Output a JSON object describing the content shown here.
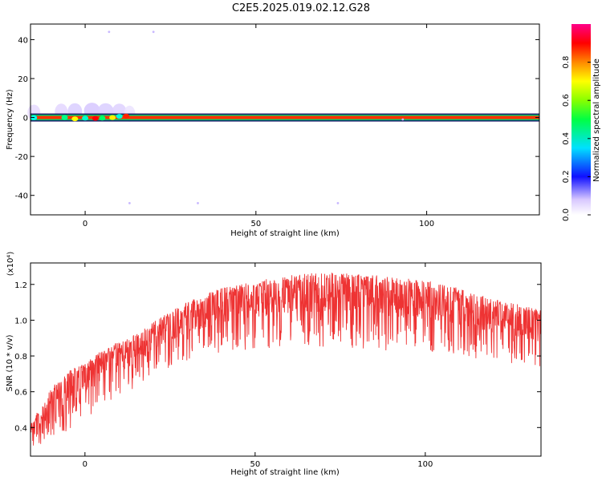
{
  "title": "C2E5.2025.019.02.12.G28",
  "chart_data": [
    {
      "type": "heatmap",
      "xlabel": "Height of straight line (km)",
      "ylabel": "Frequency (Hz)",
      "xlim": [
        -16,
        133
      ],
      "ylim": [
        -50,
        48
      ],
      "xticks": [
        0,
        50,
        100
      ],
      "yticks": [
        -40,
        -20,
        0,
        20,
        40
      ],
      "ridge_frequency": 0,
      "colorbar": {
        "label": "Normalized spectral amplitude",
        "range": [
          0,
          1
        ],
        "ticks": [
          "0.0",
          "0.2",
          "0.4",
          "0.6",
          "0.8"
        ]
      }
    },
    {
      "type": "line",
      "xlabel": "Height of straight line (km)",
      "ylabel": "SNR (10 * v/v)",
      "yscale_note": "(x10⁴)",
      "xlim": [
        -16,
        134
      ],
      "ylim": [
        0.24,
        1.32
      ],
      "xticks": [
        0,
        50,
        100
      ],
      "yticks": [
        "0.4",
        "0.6",
        "0.8",
        "1.0",
        "1.2"
      ],
      "line_color": "#ee3333",
      "envelope": {
        "x": [
          -16,
          -10,
          -5,
          0,
          5,
          10,
          15,
          20,
          30,
          40,
          50,
          60,
          70,
          80,
          90,
          100,
          110,
          120,
          125,
          130,
          134
        ],
        "upper": [
          0.42,
          0.62,
          0.72,
          0.76,
          0.83,
          0.88,
          0.92,
          0.99,
          1.1,
          1.18,
          1.22,
          1.25,
          1.27,
          1.26,
          1.24,
          1.22,
          1.18,
          1.12,
          1.1,
          1.08,
          1.06
        ],
        "lower": [
          0.27,
          0.32,
          0.38,
          0.44,
          0.52,
          0.57,
          0.62,
          0.7,
          0.77,
          0.82,
          0.84,
          0.85,
          0.85,
          0.84,
          0.83,
          0.82,
          0.8,
          0.77,
          0.76,
          0.74,
          0.72
        ]
      }
    }
  ]
}
